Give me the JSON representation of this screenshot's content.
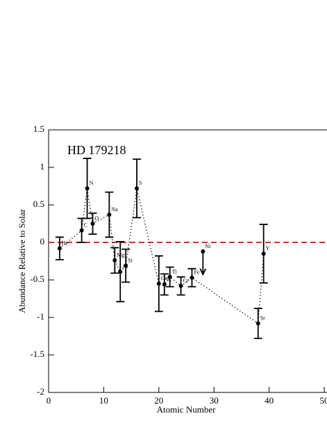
{
  "chart_data": {
    "type": "scatter",
    "annotation": "HD 179218",
    "xlabel": "Atomic Number",
    "ylabel": "Abundance Relative to Solar",
    "labels": [
      "He",
      "C",
      "N",
      "O",
      "Na",
      "Mg",
      "Al",
      "Si",
      "S",
      "Ca",
      "Sc",
      "Ti",
      "Cr",
      "Fe",
      "Ni",
      "Sr",
      "Y"
    ],
    "x": [
      2,
      6,
      7,
      8,
      11,
      12,
      13,
      14,
      16,
      20,
      21,
      22,
      24,
      26,
      28,
      38,
      39
    ],
    "values": [
      -0.08,
      0.16,
      0.72,
      0.25,
      0.37,
      -0.24,
      -0.39,
      -0.31,
      0.72,
      -0.55,
      -0.56,
      -0.46,
      -0.58,
      -0.47,
      -0.12,
      -1.08,
      -0.15
    ],
    "errors": [
      0.15,
      0.16,
      0.4,
      0.14,
      0.3,
      0.17,
      0.4,
      0.22,
      0.39,
      0.37,
      0.14,
      0.13,
      0.12,
      0.12,
      null,
      0.2,
      0.39
    ],
    "upper_limits": [
      false,
      false,
      false,
      false,
      false,
      false,
      false,
      false,
      false,
      false,
      false,
      false,
      false,
      false,
      true,
      false,
      false
    ],
    "color": "#000000",
    "reference_line": {
      "y": 0,
      "color": "#e8262a"
    },
    "xlim": [
      0,
      50.5
    ],
    "xticks": [
      0,
      10,
      20,
      30,
      40,
      50
    ],
    "ylim": [
      -2,
      1.5
    ],
    "yticks": [
      -2,
      -1.5,
      -1,
      -0.5,
      0,
      0.5,
      1,
      1.5
    ]
  }
}
